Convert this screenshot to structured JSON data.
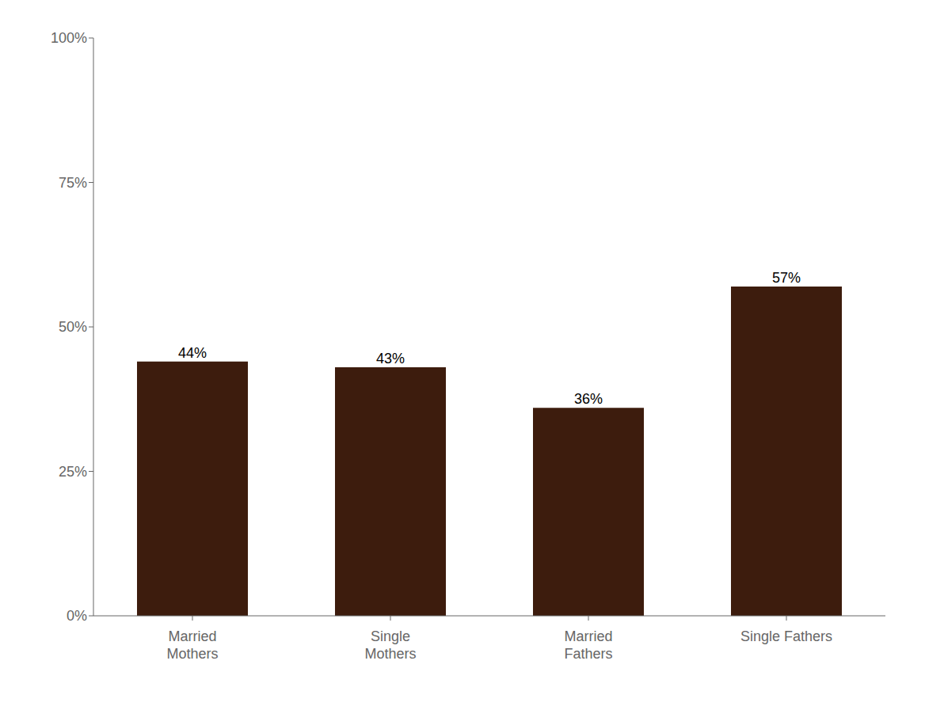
{
  "chart_data": {
    "type": "bar",
    "categories": [
      "Married\nMothers",
      "Single\nMothers",
      "Married\nFathers",
      "Single Fathers"
    ],
    "values": [
      44,
      43,
      36,
      57
    ],
    "value_labels": [
      "44%",
      "43%",
      "36%",
      "57%"
    ],
    "data_labels": true,
    "color": "#3d1c0d",
    "ylim": [
      0,
      100
    ],
    "yticks": [
      {
        "value": 0,
        "label": "0%"
      },
      {
        "value": 25,
        "label": "25%"
      },
      {
        "value": 50,
        "label": "50%"
      },
      {
        "value": 75,
        "label": "75%"
      },
      {
        "value": 100,
        "label": "100%"
      }
    ],
    "grid": false
  }
}
